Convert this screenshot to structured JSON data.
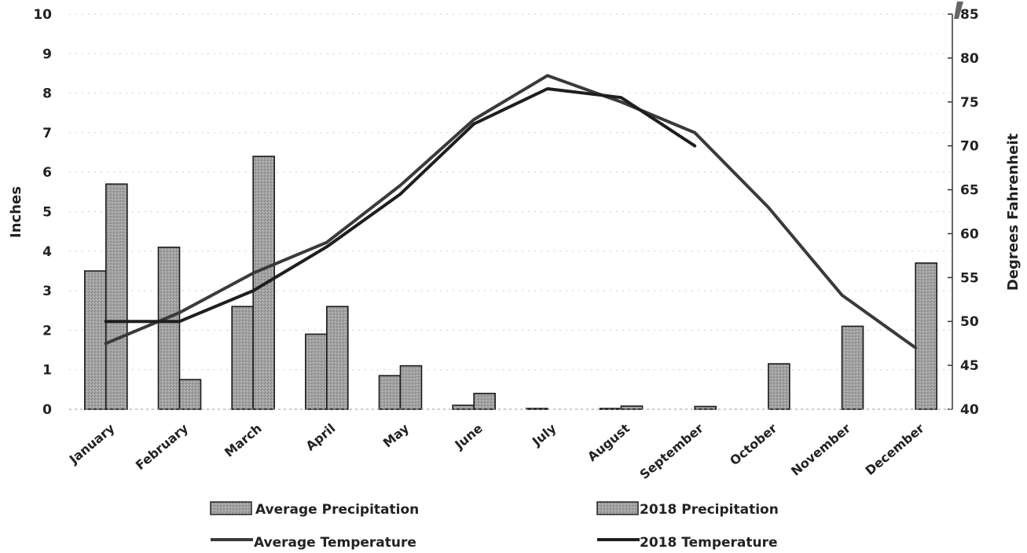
{
  "chart_data": {
    "type": "bar",
    "categories": [
      "January",
      "February",
      "March",
      "April",
      "May",
      "June",
      "July",
      "August",
      "September",
      "October",
      "November",
      "December"
    ],
    "series": [
      {
        "name": "Average Precipitation",
        "kind": "bar",
        "axis": "left",
        "values": [
          3.5,
          4.1,
          2.6,
          1.9,
          0.85,
          0.1,
          0.02,
          0.02,
          0.0,
          0.0,
          0.0,
          0.0
        ],
        "color": "#9a9a9a"
      },
      {
        "name": "2018 Precipitation",
        "kind": "bar",
        "axis": "left",
        "values": [
          5.7,
          0.75,
          6.4,
          2.6,
          1.1,
          0.4,
          0.0,
          0.08,
          0.07,
          1.15,
          2.1,
          3.7
        ],
        "color": "#a8a8a8"
      },
      {
        "name": "Average Temperature",
        "kind": "line",
        "axis": "right",
        "values": [
          47.5,
          51,
          55.5,
          59,
          65.5,
          73,
          78,
          75,
          71.5,
          63,
          53,
          47
        ],
        "color": "#3a3a3a"
      },
      {
        "name": "2018 Temperature",
        "kind": "line",
        "axis": "right",
        "values": [
          50,
          50,
          53.5,
          58.5,
          64.5,
          72.5,
          76.5,
          75.5,
          70,
          null,
          null,
          null
        ],
        "color": "#1e1e1e"
      }
    ],
    "title": "",
    "ylabel": "Inches",
    "y2label": "Degrees Fahrenheit",
    "ylim": [
      0,
      10
    ],
    "y2lim": [
      40,
      85
    ],
    "yticks": [
      "0",
      "1",
      "2",
      "3",
      "4",
      "5",
      "6",
      "7",
      "8",
      "9",
      "10"
    ],
    "y2ticks": [
      "40",
      "45",
      "50",
      "55",
      "60",
      "65",
      "70",
      "75",
      "80",
      "85"
    ],
    "grid": true,
    "legend_position": "bottom"
  }
}
